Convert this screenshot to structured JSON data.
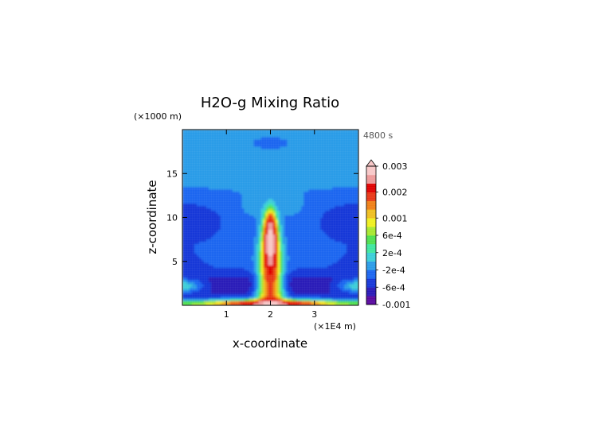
{
  "chart_data": {
    "type": "heatmap",
    "title": "H2O-g Mixing Ratio",
    "xlabel": "x-coordinate",
    "ylabel": "z-coordinate",
    "x_unit": "(×1E4 m)",
    "y_unit": "(×1000 m)",
    "time_label": "4800 s",
    "xlim": [
      0,
      4
    ],
    "ylim": [
      0,
      20
    ],
    "x_ticks": [
      1,
      2,
      3
    ],
    "y_ticks": [
      5,
      10,
      15
    ],
    "colorbar": {
      "labels": [
        "0.003",
        "0.002",
        "0.001",
        "6e-4",
        "2e-4",
        "-2e-4",
        "-6e-4",
        "-0.001"
      ],
      "levels": [
        -0.001,
        -0.0008,
        -0.0006,
        -0.0004,
        -0.0002,
        0.0,
        0.0002,
        0.0004,
        0.0006,
        0.0008,
        0.001,
        0.0012,
        0.0015,
        0.002,
        0.0025,
        0.003
      ],
      "colors": [
        "#5a0aa0",
        "#2a1ab8",
        "#1838d8",
        "#1c66f0",
        "#2a9ce8",
        "#3ccfd8",
        "#40e6a0",
        "#50e050",
        "#a8e830",
        "#f0f020",
        "#f0c020",
        "#f08018",
        "#e83818",
        "#e00000",
        "#ee9a9a",
        "#f8c8c8"
      ],
      "extend_top": true
    }
  }
}
